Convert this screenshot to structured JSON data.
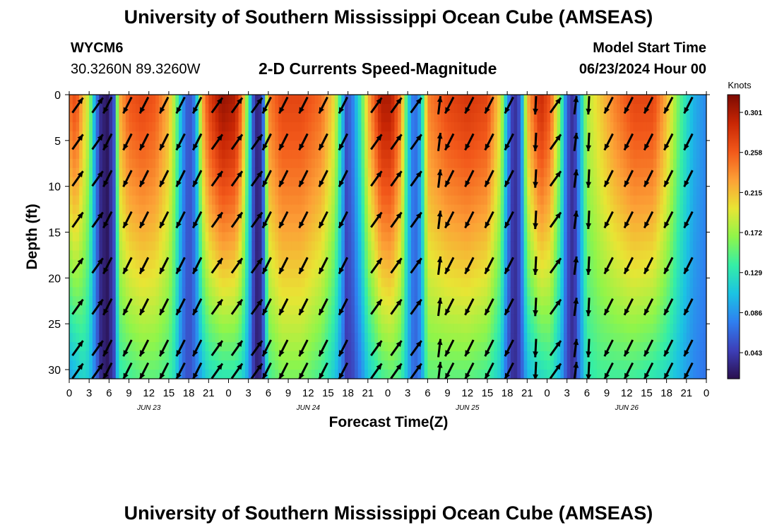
{
  "header": {
    "title": "University of Southern Mississippi Ocean Cube (AMSEAS)",
    "station_id": "WYCM6",
    "station_coords": "30.3260N  89.3260W",
    "plot_title": "2-D Currents Speed-Magnitude",
    "model_start_label": "Model Start Time",
    "model_start_value": "06/23/2024 Hour 00"
  },
  "footer": {
    "title": "University of Southern Mississippi Ocean Cube (AMSEAS)"
  },
  "chart_data": {
    "type": "heatmap",
    "title": "2-D Currents Speed-Magnitude",
    "xlabel": "Forecast Time(Z)",
    "ylabel": "Depth (ft)",
    "colorbar_label": "Knots",
    "x_range_hours": [
      0,
      96
    ],
    "y_range_ft": [
      0,
      31
    ],
    "x_ticks": [
      "0",
      "3",
      "6",
      "9",
      "12",
      "15",
      "18",
      "21",
      "0",
      "3",
      "6",
      "9",
      "12",
      "15",
      "18",
      "21",
      "0",
      "3",
      "6",
      "9",
      "12",
      "15",
      "18",
      "21",
      "0",
      "3",
      "6",
      "9",
      "12",
      "15",
      "18",
      "21",
      "0"
    ],
    "y_ticks": [
      "0",
      "5",
      "10",
      "15",
      "20",
      "25",
      "30"
    ],
    "date_labels": [
      "JUN 23",
      "JUN 24",
      "JUN 25",
      "JUN 26"
    ],
    "colorbar_ticks": [
      "0.301",
      "0.258",
      "0.215",
      "0.172",
      "0.129",
      "0.086",
      "0.043"
    ],
    "colorbar_range": [
      0.015,
      0.32
    ],
    "colorscale": [
      "#2a0f4e",
      "#3d3fb8",
      "#2f7ff0",
      "#1bc3e3",
      "#35eea6",
      "#8ff54a",
      "#e8e534",
      "#fca036",
      "#f2581a",
      "#c82604",
      "#7c0a02"
    ],
    "speed_columns": [
      {
        "t": 0,
        "top": 0.25,
        "bottom": 0.09
      },
      {
        "t": 1,
        "top": 0.27,
        "bottom": 0.1
      },
      {
        "t": 2,
        "top": 0.22,
        "bottom": 0.12
      },
      {
        "t": 3,
        "top": 0.18,
        "bottom": 0.11
      },
      {
        "t": 4,
        "top": 0.08,
        "bottom": 0.07
      },
      {
        "t": 4.8,
        "top": 0.03,
        "bottom": 0.03
      },
      {
        "t": 5.8,
        "top": 0.02,
        "bottom": 0.02
      },
      {
        "t": 6.8,
        "top": 0.06,
        "bottom": 0.05
      },
      {
        "t": 7.5,
        "top": 0.22,
        "bottom": 0.13
      },
      {
        "t": 9,
        "top": 0.26,
        "bottom": 0.14
      },
      {
        "t": 11,
        "top": 0.27,
        "bottom": 0.15
      },
      {
        "t": 13,
        "top": 0.26,
        "bottom": 0.15
      },
      {
        "t": 15,
        "top": 0.22,
        "bottom": 0.14
      },
      {
        "t": 16,
        "top": 0.17,
        "bottom": 0.12
      },
      {
        "t": 17,
        "top": 0.09,
        "bottom": 0.07
      },
      {
        "t": 18,
        "top": 0.05,
        "bottom": 0.05
      },
      {
        "t": 19,
        "top": 0.08,
        "bottom": 0.07
      },
      {
        "t": 20,
        "top": 0.22,
        "bottom": 0.1
      },
      {
        "t": 21,
        "top": 0.27,
        "bottom": 0.12
      },
      {
        "t": 23,
        "top": 0.31,
        "bottom": 0.13
      },
      {
        "t": 25,
        "top": 0.3,
        "bottom": 0.13
      },
      {
        "t": 26,
        "top": 0.25,
        "bottom": 0.12
      },
      {
        "t": 27,
        "top": 0.14,
        "bottom": 0.09
      },
      {
        "t": 27.8,
        "top": 0.05,
        "bottom": 0.04
      },
      {
        "t": 28.5,
        "top": 0.02,
        "bottom": 0.02
      },
      {
        "t": 29.2,
        "top": 0.06,
        "bottom": 0.05
      },
      {
        "t": 30,
        "top": 0.24,
        "bottom": 0.14
      },
      {
        "t": 32,
        "top": 0.27,
        "bottom": 0.16
      },
      {
        "t": 35,
        "top": 0.27,
        "bottom": 0.16
      },
      {
        "t": 38,
        "top": 0.25,
        "bottom": 0.14
      },
      {
        "t": 40,
        "top": 0.2,
        "bottom": 0.11
      },
      {
        "t": 41,
        "top": 0.12,
        "bottom": 0.08
      },
      {
        "t": 41.8,
        "top": 0.05,
        "bottom": 0.04
      },
      {
        "t": 42.8,
        "top": 0.08,
        "bottom": 0.05
      },
      {
        "t": 44,
        "top": 0.14,
        "bottom": 0.08
      },
      {
        "t": 45,
        "top": 0.22,
        "bottom": 0.11
      },
      {
        "t": 47,
        "top": 0.3,
        "bottom": 0.14
      },
      {
        "t": 48.5,
        "top": 0.3,
        "bottom": 0.15
      },
      {
        "t": 50,
        "top": 0.24,
        "bottom": 0.14
      },
      {
        "t": 51,
        "top": 0.12,
        "bottom": 0.1
      },
      {
        "t": 52,
        "top": 0.06,
        "bottom": 0.06
      },
      {
        "t": 53,
        "top": 0.1,
        "bottom": 0.08
      },
      {
        "t": 54,
        "top": 0.24,
        "bottom": 0.15
      },
      {
        "t": 57,
        "top": 0.27,
        "bottom": 0.15
      },
      {
        "t": 60,
        "top": 0.28,
        "bottom": 0.15
      },
      {
        "t": 63,
        "top": 0.27,
        "bottom": 0.14
      },
      {
        "t": 65,
        "top": 0.2,
        "bottom": 0.11
      },
      {
        "t": 66,
        "top": 0.09,
        "bottom": 0.06
      },
      {
        "t": 67,
        "top": 0.03,
        "bottom": 0.03
      },
      {
        "t": 68,
        "top": 0.06,
        "bottom": 0.05
      },
      {
        "t": 69,
        "top": 0.22,
        "bottom": 0.1
      },
      {
        "t": 71,
        "top": 0.29,
        "bottom": 0.12
      },
      {
        "t": 72.5,
        "top": 0.26,
        "bottom": 0.13
      },
      {
        "t": 74,
        "top": 0.16,
        "bottom": 0.1
      },
      {
        "t": 75,
        "top": 0.06,
        "bottom": 0.05
      },
      {
        "t": 76,
        "top": 0.03,
        "bottom": 0.03
      },
      {
        "t": 77,
        "top": 0.1,
        "bottom": 0.08
      },
      {
        "t": 78,
        "top": 0.18,
        "bottom": 0.13
      },
      {
        "t": 80,
        "top": 0.21,
        "bottom": 0.14
      },
      {
        "t": 82,
        "top": 0.24,
        "bottom": 0.14
      },
      {
        "t": 85,
        "top": 0.27,
        "bottom": 0.14
      },
      {
        "t": 88,
        "top": 0.27,
        "bottom": 0.13
      },
      {
        "t": 90,
        "top": 0.22,
        "bottom": 0.12
      },
      {
        "t": 92,
        "top": 0.15,
        "bottom": 0.1
      },
      {
        "t": 94,
        "top": 0.1,
        "bottom": 0.08
      },
      {
        "t": 96,
        "top": 0.08,
        "bottom": 0.07
      }
    ],
    "vector_columns": [
      {
        "t": 0,
        "dir": "NE"
      },
      {
        "t": 3,
        "dir": "NE"
      },
      {
        "t": 4.5,
        "dir": "SW"
      },
      {
        "t": 7.5,
        "dir": "SW"
      },
      {
        "t": 10,
        "dir": "SW"
      },
      {
        "t": 13,
        "dir": "SW"
      },
      {
        "t": 15.5,
        "dir": "SW"
      },
      {
        "t": 18,
        "dir": "SW"
      },
      {
        "t": 21,
        "dir": "NE"
      },
      {
        "t": 24,
        "dir": "NE"
      },
      {
        "t": 27,
        "dir": "NE"
      },
      {
        "t": 28.5,
        "dir": "SW"
      },
      {
        "t": 31,
        "dir": "SW"
      },
      {
        "t": 34,
        "dir": "SW"
      },
      {
        "t": 37,
        "dir": "SW"
      },
      {
        "t": 40,
        "dir": "SW"
      },
      {
        "t": 45,
        "dir": "NE"
      },
      {
        "t": 48,
        "dir": "NE"
      },
      {
        "t": 51,
        "dir": "NE"
      },
      {
        "t": 54.5,
        "dir": "N"
      },
      {
        "t": 56,
        "dir": "SW"
      },
      {
        "t": 59,
        "dir": "SW"
      },
      {
        "t": 62,
        "dir": "SW"
      },
      {
        "t": 65,
        "dir": "SW"
      },
      {
        "t": 69,
        "dir": "S"
      },
      {
        "t": 72,
        "dir": "NE"
      },
      {
        "t": 75,
        "dir": "N"
      },
      {
        "t": 77,
        "dir": "S"
      },
      {
        "t": 80,
        "dir": "SW"
      },
      {
        "t": 83,
        "dir": "SW"
      },
      {
        "t": 86,
        "dir": "SW"
      },
      {
        "t": 89,
        "dir": "SW"
      },
      {
        "t": 92,
        "dir": "SW"
      }
    ]
  }
}
